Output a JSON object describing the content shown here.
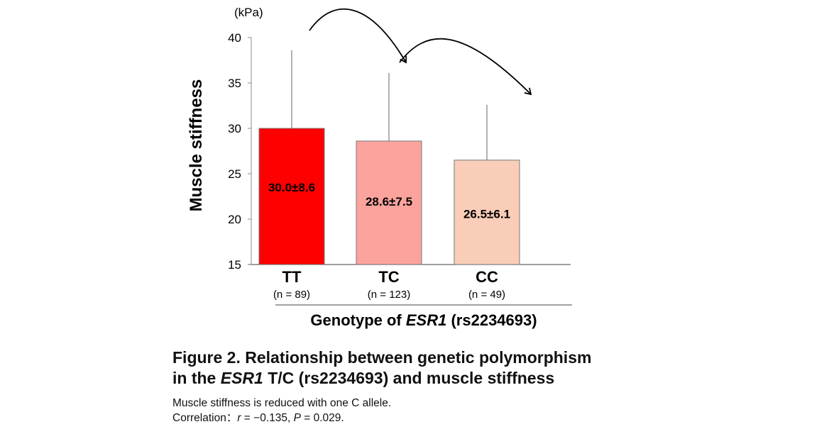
{
  "chart_data": {
    "type": "bar",
    "title": "",
    "ylabel": "Muscle stiffness",
    "yunit": "(kPa)",
    "xlabel_parts": [
      "Genotype of ",
      "ESR1",
      " (rs2234693)"
    ],
    "ylim": [
      15,
      40
    ],
    "yticks": [
      15,
      20,
      25,
      30,
      35,
      40
    ],
    "grid": false,
    "categories": [
      "TT",
      "TC",
      "CC"
    ],
    "n_labels": [
      "(n = 89)",
      "(n = 123)",
      "(n = 49)"
    ],
    "values": [
      30.0,
      28.6,
      26.5
    ],
    "sd": [
      8.6,
      7.5,
      6.1
    ],
    "data_labels": [
      "30.0±8.6",
      "28.6±7.5",
      "26.5±6.1"
    ],
    "colors": [
      "#ff0000",
      "#fca39e",
      "#f9cdb8"
    ],
    "annotations": [
      "arrow TT to TC",
      "arrow TC to CC"
    ]
  },
  "caption": {
    "line1": "Figure 2. Relationship between genetic polymorphism",
    "line2_pre": "in the ",
    "line2_italic": "ESR1",
    "line2_post": " T/C (rs2234693) and muscle stiffness"
  },
  "notes": {
    "line1": "Muscle stiffness is reduced with one C allele.",
    "line2_pre": "Correlation：",
    "r_label": "r",
    "r_value": " = −0.135, ",
    "p_label": "P",
    "p_value": " = 0.029."
  }
}
